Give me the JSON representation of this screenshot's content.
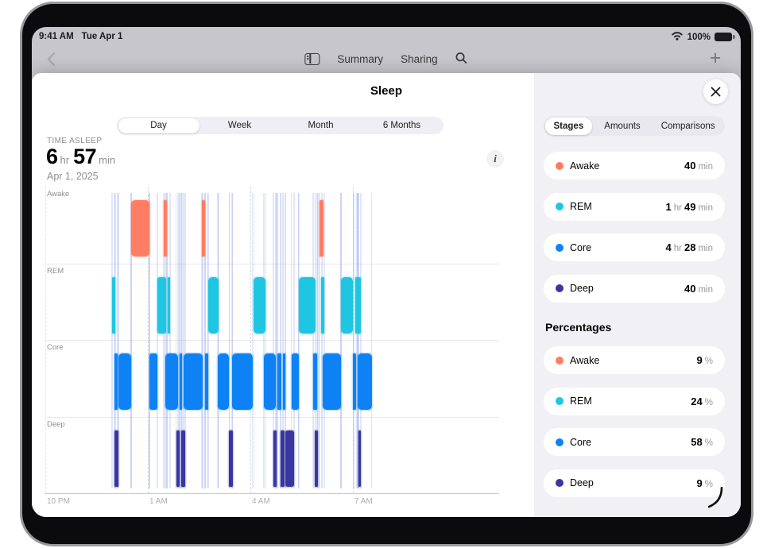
{
  "status_bar": {
    "time": "9:41 AM",
    "date": "Tue Apr 1",
    "battery_percent": "100%"
  },
  "nav": {
    "summary_label": "Summary",
    "sharing_label": "Sharing"
  },
  "sheet": {
    "title": "Sleep"
  },
  "range_tabs": {
    "options": [
      "Day",
      "Week",
      "Month",
      "6 Months"
    ],
    "selected_index": 0
  },
  "metric": {
    "label": "TIME ASLEEP",
    "value_parts": [
      "6",
      "hr",
      "57",
      "min"
    ],
    "date": "Apr 1, 2025"
  },
  "stages_panel": {
    "tabs": [
      "Stages",
      "Amounts",
      "Comparisons"
    ],
    "selected_index": 0,
    "stage_rows": [
      {
        "name": "Awake",
        "color": "#FF7D63",
        "value_parts": [
          "40",
          "min"
        ]
      },
      {
        "name": "REM",
        "color": "#1EC6E2",
        "value_parts": [
          "1",
          "hr",
          "49",
          "min"
        ]
      },
      {
        "name": "Core",
        "color": "#0E82F5",
        "value_parts": [
          "4",
          "hr",
          "28",
          "min"
        ]
      },
      {
        "name": "Deep",
        "color": "#3936A0",
        "value_parts": [
          "40",
          "min"
        ]
      }
    ],
    "percent_heading": "Percentages",
    "percent_rows": [
      {
        "name": "Awake",
        "color": "#FF7D63",
        "value_parts": [
          "9",
          "%"
        ]
      },
      {
        "name": "REM",
        "color": "#1EC6E2",
        "value_parts": [
          "24",
          "%"
        ]
      },
      {
        "name": "Core",
        "color": "#0E82F5",
        "value_parts": [
          "58",
          "%"
        ]
      },
      {
        "name": "Deep",
        "color": "#3936A0",
        "value_parts": [
          "9",
          "%"
        ]
      }
    ]
  },
  "chart_data": {
    "type": "timeline",
    "title": "Sleep stages hypnogram",
    "date": "Apr 1, 2025",
    "x_axis": {
      "unit": "hours after 10 PM",
      "span_hours": 13.3,
      "ticks": [
        {
          "label": "10 PM",
          "hour": 0
        },
        {
          "label": "1 AM",
          "hour": 3
        },
        {
          "label": "4 AM",
          "hour": 6
        },
        {
          "label": "7 AM",
          "hour": 9
        }
      ]
    },
    "rows": [
      {
        "label": "Awake",
        "color": "#FF7D63",
        "total": "40 min",
        "percent": "9%",
        "segments": [
          [
            2.51,
            3.05
          ],
          [
            3.46,
            3.56
          ],
          [
            4.58,
            4.68
          ],
          [
            8.02,
            8.13
          ]
        ]
      },
      {
        "label": "REM",
        "color": "#1EC6E2",
        "total": "1 hr 49 min",
        "percent": "24%",
        "segments": [
          [
            1.95,
            2.05
          ],
          [
            3.29,
            3.53
          ],
          [
            3.57,
            3.61
          ],
          [
            4.76,
            5.07
          ],
          [
            6.1,
            6.45
          ],
          [
            7.41,
            7.9
          ],
          [
            8.08,
            8.17
          ],
          [
            8.65,
            9.01
          ],
          [
            9.06,
            9.1
          ],
          [
            9.14,
            9.19
          ]
        ]
      },
      {
        "label": "Core",
        "color": "#0E82F5",
        "total": "4 hr 28 min",
        "percent": "58%",
        "segments": [
          [
            2.03,
            2.1
          ],
          [
            2.15,
            2.51
          ],
          [
            3.05,
            3.27
          ],
          [
            3.5,
            3.88
          ],
          [
            3.92,
            3.97
          ],
          [
            4.05,
            4.6
          ],
          [
            4.67,
            4.77
          ],
          [
            5.05,
            5.38
          ],
          [
            5.46,
            6.06
          ],
          [
            6.4,
            6.74
          ],
          [
            6.79,
            6.9
          ],
          [
            6.95,
            7.02
          ],
          [
            7.2,
            7.42
          ],
          [
            7.84,
            7.95
          ],
          [
            8.11,
            8.65
          ],
          [
            9.01,
            9.1
          ],
          [
            9.15,
            9.55
          ]
        ]
      },
      {
        "label": "Deep",
        "color": "#3936A0",
        "total": "40 min",
        "percent": "9%",
        "segments": [
          [
            2.03,
            2.13
          ],
          [
            3.83,
            3.93
          ],
          [
            3.98,
            4.09
          ],
          [
            5.38,
            5.48
          ],
          [
            6.67,
            6.77
          ],
          [
            6.88,
            6.99
          ],
          [
            7.03,
            7.28
          ],
          [
            7.89,
            7.96
          ],
          [
            9.16,
            9.2
          ]
        ]
      }
    ]
  }
}
